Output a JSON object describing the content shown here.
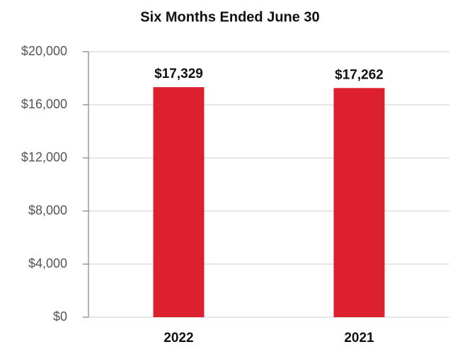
{
  "chart_data": {
    "type": "bar",
    "title": "Six Months Ended June 30",
    "categories": [
      "2022",
      "2021"
    ],
    "values": [
      17329,
      17262
    ],
    "value_labels": [
      "$17,329",
      "$17,262"
    ],
    "color": "#dc202e",
    "ylim": [
      0,
      20000
    ],
    "yticks": [
      {
        "value": 0,
        "label": "$0"
      },
      {
        "value": 4000,
        "label": "$4,000"
      },
      {
        "value": 8000,
        "label": "$8,000"
      },
      {
        "value": 12000,
        "label": "$12,000"
      },
      {
        "value": 16000,
        "label": "$16,000"
      },
      {
        "value": 20000,
        "label": "$20,000"
      }
    ],
    "grid": true
  }
}
